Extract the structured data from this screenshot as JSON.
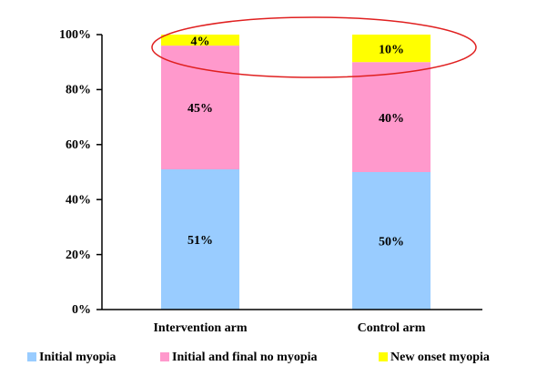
{
  "chart_data": {
    "type": "stacked_bar",
    "categories": [
      "Intervention arm",
      "Control arm"
    ],
    "series": [
      {
        "name": "Initial myopia",
        "color": "#99ccff",
        "values": [
          51,
          50
        ],
        "value_labels": [
          "51%",
          "50%"
        ]
      },
      {
        "name": "Initial and final no myopia",
        "color": "#ff99cc",
        "values": [
          45,
          40
        ],
        "value_labels": [
          "45%",
          "40%"
        ]
      },
      {
        "name": "New onset myopia",
        "color": "#ffff00",
        "values": [
          4,
          10
        ],
        "value_labels": [
          "4%",
          "10%"
        ]
      }
    ],
    "ylim": [
      0,
      100
    ],
    "yticks": [
      {
        "value": 0,
        "label": "0%"
      },
      {
        "value": 20,
        "label": "20%"
      },
      {
        "value": 40,
        "label": "40%"
      },
      {
        "value": 60,
        "label": "60%"
      },
      {
        "value": 80,
        "label": "80%"
      },
      {
        "value": 100,
        "label": "100%"
      }
    ],
    "legend": "bottom"
  }
}
